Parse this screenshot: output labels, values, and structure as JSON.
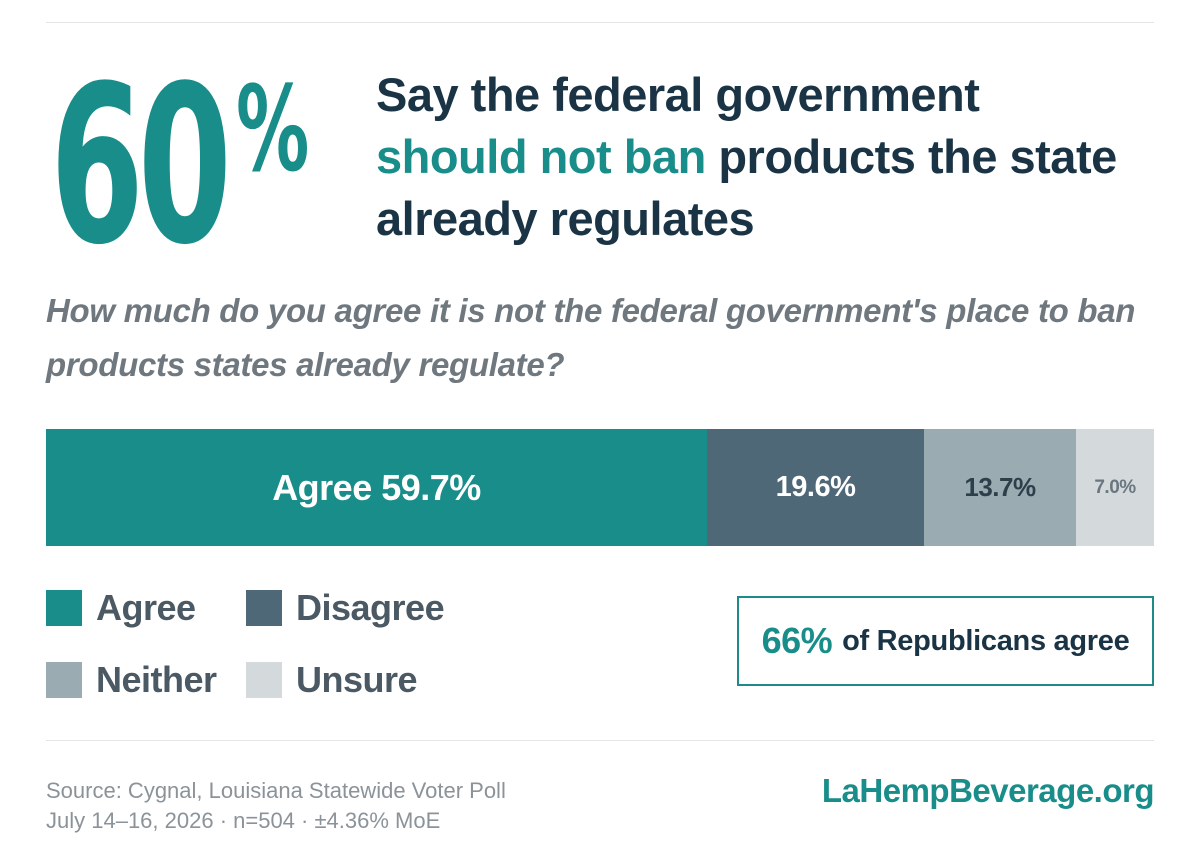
{
  "colors": {
    "teal": "#188d8a",
    "navy": "#1a3445",
    "disagree": "#4e6877",
    "neither": "#9aabb2",
    "unsure": "#d4d9db"
  },
  "stat": {
    "number": "60",
    "percent": "%"
  },
  "headline": {
    "line1": "Say the federal government",
    "highlight": "should not ban",
    "rest": " products the state already regulates"
  },
  "question": "How much do you agree it is not the federal government's place to ban products states already regulate?",
  "chart_data": {
    "type": "bar",
    "orientation": "horizontal-stacked-100",
    "categories": [
      "Agree",
      "Disagree",
      "Neither",
      "Unsure"
    ],
    "series": [
      {
        "category": "Agree",
        "value": 59.7,
        "label": "Agree 59.7%",
        "color": "#188d8a",
        "text_color": "#ffffff",
        "font_size": 36
      },
      {
        "category": "Disagree",
        "value": 19.6,
        "label": "19.6%",
        "color": "#4e6877",
        "text_color": "#ffffff",
        "font_size": 29
      },
      {
        "category": "Neither",
        "value": 13.7,
        "label": "13.7%",
        "color": "#9aabb2",
        "text_color": "#2d3f4a",
        "font_size": 26
      },
      {
        "category": "Unsure",
        "value": 7.0,
        "label": "7.0%",
        "color": "#d4d9db",
        "text_color": "#6b7780",
        "font_size": 19
      }
    ],
    "legend": {
      "placement": "bottom-left",
      "items": [
        {
          "label": "Agree",
          "color": "#188d8a"
        },
        {
          "label": "Disagree",
          "color": "#4e6877"
        },
        {
          "label": "Neither",
          "color": "#9aabb2"
        },
        {
          "label": "Unsure",
          "color": "#d4d9db"
        }
      ]
    }
  },
  "callout": {
    "percent": "66%",
    "text": "of Republicans agree"
  },
  "footer": {
    "source_line1": "Source: Cygnal, Louisiana Statewide Voter Poll",
    "source_line2": "July 14–16, 2026 · n=504 · ±4.36% MoE",
    "site": "LaHempBeverage.org"
  }
}
